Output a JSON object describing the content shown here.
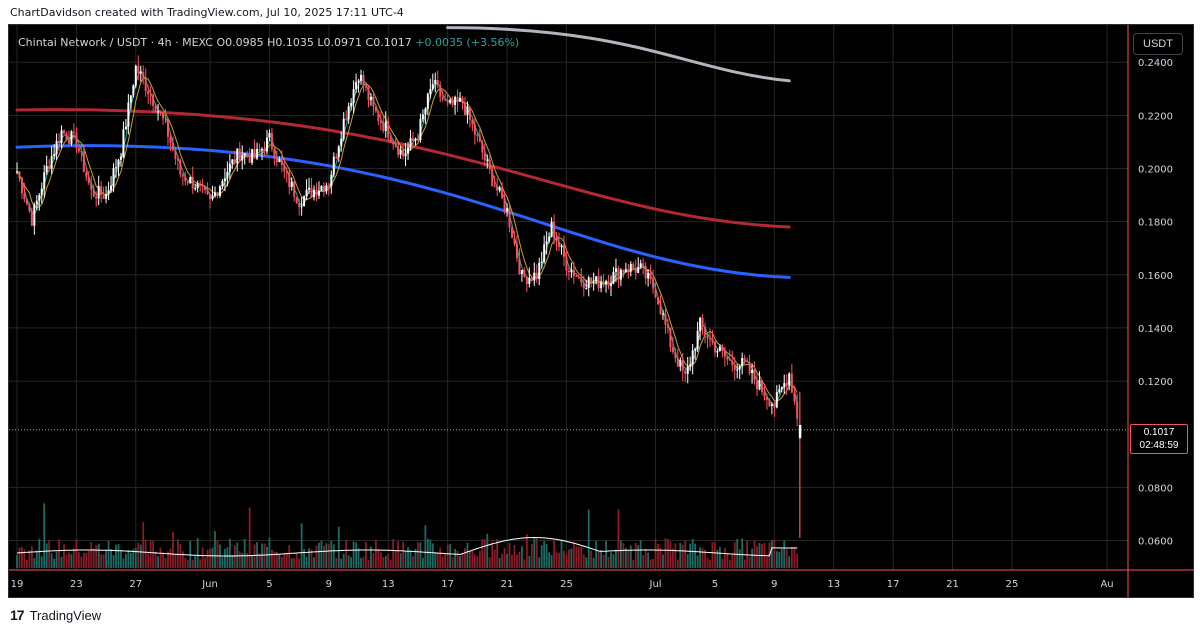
{
  "header": {
    "credit": "ChartDavidson created with TradingView.com, Jul 10, 2025 17:11 UTC-4"
  },
  "legend": {
    "symbol": "Chintai Network / USDT · 4h · MEXC",
    "open_label": "O",
    "open": "0.0985",
    "high_label": "H",
    "high": "0.1035",
    "low_label": "L",
    "low": "0.0971",
    "close_label": "C",
    "close": "0.1017",
    "change": "+0.0035 (+3.56%)"
  },
  "currency_button": "USDT",
  "last_price": {
    "value": "0.1017",
    "countdown": "02:48:59"
  },
  "brand": {
    "name": "TradingView"
  },
  "colors": {
    "background": "#000000",
    "up": "#ffffff",
    "down": "#f7525f",
    "ema_fast": "#26a69a",
    "ema_slow": "#c9a227",
    "ma_red": "#b22833",
    "ma_blue": "#2962ff",
    "ma_gray": "#b2b5be",
    "volume_up": "#1b6b62",
    "volume_down": "#8a1c27",
    "volume_ma": "#ffffff",
    "grid": "#262626"
  },
  "chart_data": {
    "type": "candlestick",
    "symbol": "Chintai Network / USDT",
    "interval": "4h",
    "exchange": "MEXC",
    "y_ticks": [
      "0.2400",
      "0.2200",
      "0.2000",
      "0.1800",
      "0.1600",
      "0.1400",
      "0.1200",
      "0.0800",
      "0.0600"
    ],
    "ylim": [
      0.0489,
      0.254
    ],
    "x_ticks": [
      "19",
      "23",
      "27",
      "Jun",
      "5",
      "9",
      "13",
      "17",
      "21",
      "25",
      "Jul",
      "5",
      "9",
      "13",
      "17",
      "21",
      "25",
      "Au"
    ],
    "grid": true,
    "close_path": [
      [
        "May 19",
        0.199
      ],
      [
        "May 20",
        0.181
      ],
      [
        "May 21",
        0.2
      ],
      [
        "May 22",
        0.214
      ],
      [
        "May 23",
        0.21
      ],
      [
        "May 24",
        0.191
      ],
      [
        "May 25",
        0.19
      ],
      [
        "May 26",
        0.207
      ],
      [
        "May 27",
        0.238
      ],
      [
        "May 28",
        0.228
      ],
      [
        "May 29",
        0.216
      ],
      [
        "May 30",
        0.198
      ],
      [
        "May 31",
        0.194
      ],
      [
        "Jun 1",
        0.187
      ],
      [
        "Jun 2",
        0.198
      ],
      [
        "Jun 3",
        0.206
      ],
      [
        "Jun 4",
        0.204
      ],
      [
        "Jun 5",
        0.211
      ],
      [
        "Jun 6",
        0.198
      ],
      [
        "Jun 7",
        0.188
      ],
      [
        "Jun 8",
        0.192
      ],
      [
        "Jun 9",
        0.195
      ],
      [
        "Jun 10",
        0.218
      ],
      [
        "Jun 11",
        0.236
      ],
      [
        "Jun 12",
        0.222
      ],
      [
        "Jun 13",
        0.214
      ],
      [
        "Jun 14",
        0.205
      ],
      [
        "Jun 15",
        0.213
      ],
      [
        "Jun 16",
        0.232
      ],
      [
        "Jun 17",
        0.223
      ],
      [
        "Jun 18",
        0.225
      ],
      [
        "Jun 19",
        0.211
      ],
      [
        "Jun 20",
        0.196
      ],
      [
        "Jun 21",
        0.184
      ],
      [
        "Jun 22",
        0.159
      ],
      [
        "Jun 23",
        0.16
      ],
      [
        "Jun 24",
        0.178
      ],
      [
        "Jun 25",
        0.164
      ],
      [
        "Jun 26",
        0.158
      ],
      [
        "Jun 27",
        0.157
      ],
      [
        "Jun 28",
        0.159
      ],
      [
        "Jun 29",
        0.163
      ],
      [
        "Jun 30",
        0.162
      ],
      [
        "Jul 1",
        0.154
      ],
      [
        "Jul 2",
        0.134
      ],
      [
        "Jul 3",
        0.121
      ],
      [
        "Jul 4",
        0.141
      ],
      [
        "Jul 5",
        0.133
      ],
      [
        "Jul 6",
        0.127
      ],
      [
        "Jul 7",
        0.126
      ],
      [
        "Jul 8",
        0.118
      ],
      [
        "Jul 9",
        0.111
      ],
      [
        "Jul 10",
        0.123
      ],
      [
        "Jul 10 17:11",
        0.1017
      ]
    ],
    "moving_averages": [
      {
        "color": "#b2b5be",
        "from": [
          "Jun 17",
          0.253
        ],
        "to": [
          "Jul 10",
          0.233
        ]
      },
      {
        "color": "#b22833",
        "from": [
          "May 19",
          0.222
        ],
        "to": [
          "Jul 10",
          0.178
        ]
      },
      {
        "color": "#2962ff",
        "from": [
          "May 19",
          0.208
        ],
        "to": [
          "Jul 10",
          0.159
        ]
      }
    ],
    "last": {
      "value": 0.1017,
      "countdown": "02:48:59"
    }
  }
}
